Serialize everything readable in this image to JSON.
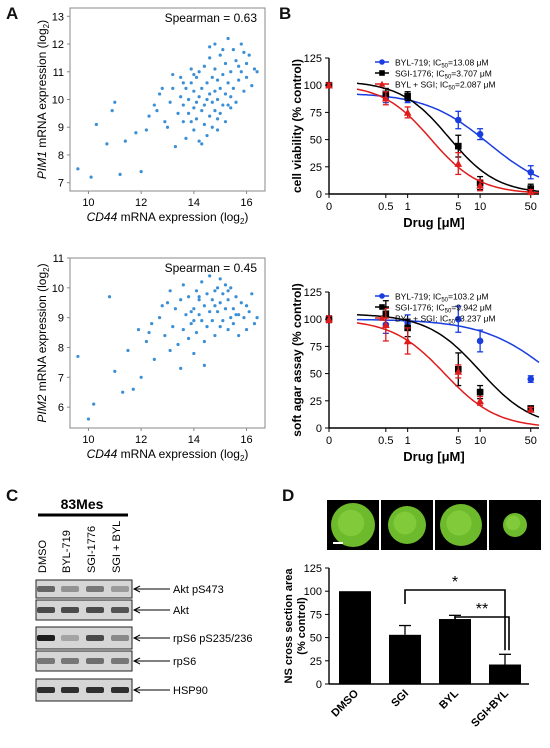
{
  "panels": {
    "A": {
      "label": "A",
      "top": {
        "stat": "Spearman = 0.63",
        "ylabel_gene": "PIM1",
        "ylabel_rest": " mRNA expression (log",
        "xlabel_gene": "CD44",
        "xlabel_rest": " mRNA expression (log",
        "sub": "2",
        "xticks": [
          10,
          12,
          14,
          16
        ],
        "yticks": [
          7,
          8,
          9,
          10,
          11,
          12,
          13
        ],
        "xlim": [
          9.3,
          16.7
        ],
        "ylim": [
          6.7,
          13.3
        ]
      },
      "bottom": {
        "stat": "Spearman = 0.45",
        "ylabel_gene": "PIM2",
        "ylabel_rest": " mRNA expression (log",
        "xlabel_gene": "CD44",
        "xlabel_rest": " mRNA expression (log",
        "sub": "2",
        "xticks": [
          10,
          12,
          14,
          16
        ],
        "yticks": [
          6,
          7,
          8,
          9,
          10,
          11
        ],
        "xlim": [
          9.3,
          16.7
        ],
        "ylim": [
          5.3,
          11.0
        ]
      }
    },
    "B": {
      "label": "B",
      "top": {
        "ylabel": "cell viability (% control)",
        "xlabel": "Drug [μM]",
        "yticks": [
          0,
          25,
          50,
          75,
          100,
          125
        ],
        "xticks": [
          "0",
          "0.5",
          "1",
          "5",
          "10",
          "50"
        ],
        "legend": [
          {
            "name": "BYL-719;",
            "ic": "IC",
            "sub": "50",
            "value": "=13.08 μM",
            "color": "#1a3de0",
            "marker": "circle"
          },
          {
            "name": "SGI-1776;",
            "ic": "IC",
            "sub": "50",
            "value": "=3.707 μM",
            "color": "#000000",
            "marker": "square"
          },
          {
            "name": "BYL + SGI;",
            "ic": "IC",
            "sub": "50",
            "value": "=2.087 μM",
            "color": "#e01b1b",
            "marker": "triangle"
          }
        ]
      },
      "bottom": {
        "ylabel": "soft agar assay (% control)",
        "xlabel": "Drug [μM]",
        "yticks": [
          0,
          25,
          50,
          75,
          100,
          125
        ],
        "xticks": [
          "0",
          "0.5",
          "1",
          "5",
          "10",
          "50"
        ],
        "legend": [
          {
            "name": "BYL-719;",
            "ic": "IC",
            "sub": "50",
            "value": "=103.2 μM",
            "color": "#1a3de0",
            "marker": "circle"
          },
          {
            "name": "SGI-1776;",
            "ic": "IC",
            "sub": "50",
            "value": "=9.942 μM",
            "color": "#000000",
            "marker": "square"
          },
          {
            "name": "BYL + SGI;",
            "ic": "IC",
            "sub": "50",
            "value": "=3.237 μM",
            "color": "#e01b1b",
            "marker": "triangle"
          }
        ]
      }
    },
    "C": {
      "label": "C",
      "cell_line": "83Mes",
      "lanes": [
        "DMSO",
        "BYL-719",
        "SGI-1776",
        "SGI + BYL"
      ],
      "bands": [
        "Akt pS473",
        "Akt",
        "rpS6 pS235/236",
        "rpS6",
        "HSP90"
      ]
    },
    "D": {
      "label": "D",
      "ylabel": "NS cross section area (% control)",
      "yticks": [
        0,
        25,
        50,
        75,
        100,
        125
      ],
      "sig1": "*",
      "sig2": "**"
    }
  },
  "chart_data": [
    {
      "type": "scatter",
      "panel": "A-top",
      "xlabel": "CD44 mRNA expression (log2)",
      "ylabel": "PIM1 mRNA expression (log2)",
      "xlim": [
        9.3,
        16.7
      ],
      "ylim": [
        6.7,
        13.3
      ],
      "color": "#3b8fd6",
      "points": [
        [
          9.6,
          7.5
        ],
        [
          10.1,
          7.2
        ],
        [
          10.3,
          9.1
        ],
        [
          10.7,
          8.4
        ],
        [
          10.9,
          9.6
        ],
        [
          11.0,
          9.9
        ],
        [
          11.2,
          7.3
        ],
        [
          11.4,
          8.5
        ],
        [
          11.8,
          8.8
        ],
        [
          12.0,
          7.4
        ],
        [
          12.2,
          8.9
        ],
        [
          12.3,
          9.4
        ],
        [
          12.5,
          9.8
        ],
        [
          12.6,
          9.6
        ],
        [
          12.8,
          10.4
        ],
        [
          13.0,
          9.0
        ],
        [
          13.1,
          9.9
        ],
        [
          13.2,
          10.4
        ],
        [
          13.3,
          8.3
        ],
        [
          13.4,
          9.5
        ],
        [
          13.5,
          10.1
        ],
        [
          13.5,
          10.8
        ],
        [
          13.6,
          9.2
        ],
        [
          13.6,
          9.8
        ],
        [
          13.7,
          8.6
        ],
        [
          13.7,
          10.4
        ],
        [
          13.8,
          9.5
        ],
        [
          13.8,
          10.0
        ],
        [
          13.9,
          9.2
        ],
        [
          13.9,
          10.6
        ],
        [
          14.0,
          8.9
        ],
        [
          14.0,
          9.7
        ],
        [
          14.0,
          10.3
        ],
        [
          14.1,
          9.3
        ],
        [
          14.1,
          9.9
        ],
        [
          14.2,
          8.5
        ],
        [
          14.2,
          10.1
        ],
        [
          14.2,
          11.0
        ],
        [
          14.3,
          9.6
        ],
        [
          14.3,
          10.4
        ],
        [
          14.4,
          9.1
        ],
        [
          14.4,
          9.8
        ],
        [
          14.4,
          11.2
        ],
        [
          14.5,
          8.7
        ],
        [
          14.5,
          10.0
        ],
        [
          14.5,
          10.6
        ],
        [
          14.6,
          9.4
        ],
        [
          14.6,
          10.2
        ],
        [
          14.6,
          11.5
        ],
        [
          14.7,
          9.0
        ],
        [
          14.7,
          9.9
        ],
        [
          14.7,
          10.8
        ],
        [
          14.8,
          9.6
        ],
        [
          14.8,
          10.3
        ],
        [
          14.8,
          11.1
        ],
        [
          14.9,
          8.9
        ],
        [
          14.9,
          10.0
        ],
        [
          14.9,
          10.7
        ],
        [
          15.0,
          9.5
        ],
        [
          15.0,
          10.4
        ],
        [
          15.0,
          11.6
        ],
        [
          15.1,
          9.8
        ],
        [
          15.1,
          10.9
        ],
        [
          15.2,
          9.2
        ],
        [
          15.2,
          10.2
        ],
        [
          15.2,
          11.3
        ],
        [
          15.3,
          10.6
        ],
        [
          15.3,
          12.2
        ],
        [
          15.4,
          9.7
        ],
        [
          15.4,
          11.0
        ],
        [
          15.5,
          10.4
        ],
        [
          15.5,
          11.8
        ],
        [
          15.6,
          9.9
        ],
        [
          15.6,
          11.4
        ],
        [
          15.7,
          10.7
        ],
        [
          15.8,
          11.0
        ],
        [
          15.8,
          12.0
        ],
        [
          15.9,
          10.3
        ],
        [
          16.0,
          11.3
        ],
        [
          16.0,
          10.8
        ],
        [
          16.1,
          11.6
        ],
        [
          16.2,
          10.5
        ],
        [
          16.3,
          11.1
        ],
        [
          16.4,
          11.0
        ],
        [
          13.2,
          10.9
        ],
        [
          14.1,
          10.8
        ],
        [
          14.6,
          11.9
        ],
        [
          15.1,
          11.8
        ],
        [
          12.9,
          9.2
        ],
        [
          13.9,
          11.1
        ],
        [
          14.3,
          8.4
        ],
        [
          15.4,
          10.1
        ],
        [
          15.7,
          11.2
        ],
        [
          14.8,
          12.0
        ],
        [
          13.6,
          10.6
        ],
        [
          12.7,
          10.2
        ],
        [
          15.9,
          11.7
        ],
        [
          14.0,
          10.9
        ],
        [
          14.9,
          9.3
        ],
        [
          15.3,
          9.8
        ]
      ]
    },
    {
      "type": "scatter",
      "panel": "A-bottom",
      "xlabel": "CD44 mRNA expression (log2)",
      "ylabel": "PIM2 mRNA expression (log2)",
      "xlim": [
        9.3,
        16.7
      ],
      "ylim": [
        5.3,
        11.0
      ],
      "color": "#3b8fd6",
      "points": [
        [
          9.6,
          7.7
        ],
        [
          10.0,
          5.6
        ],
        [
          10.2,
          6.1
        ],
        [
          10.8,
          9.7
        ],
        [
          11.0,
          7.2
        ],
        [
          11.3,
          6.5
        ],
        [
          11.5,
          7.9
        ],
        [
          11.7,
          6.6
        ],
        [
          11.9,
          8.6
        ],
        [
          12.0,
          7.0
        ],
        [
          12.2,
          8.2
        ],
        [
          12.4,
          8.8
        ],
        [
          12.5,
          7.6
        ],
        [
          12.7,
          9.0
        ],
        [
          12.9,
          8.4
        ],
        [
          13.0,
          9.5
        ],
        [
          13.1,
          7.9
        ],
        [
          13.2,
          8.7
        ],
        [
          13.3,
          9.3
        ],
        [
          13.4,
          8.1
        ],
        [
          13.5,
          9.6
        ],
        [
          13.6,
          8.6
        ],
        [
          13.6,
          10.1
        ],
        [
          13.7,
          9.1
        ],
        [
          13.8,
          8.3
        ],
        [
          13.8,
          9.7
        ],
        [
          13.9,
          8.8
        ],
        [
          14.0,
          9.3
        ],
        [
          14.0,
          7.8
        ],
        [
          14.1,
          9.9
        ],
        [
          14.1,
          8.5
        ],
        [
          14.2,
          9.1
        ],
        [
          14.2,
          9.6
        ],
        [
          14.3,
          8.9
        ],
        [
          14.3,
          10.2
        ],
        [
          14.4,
          8.2
        ],
        [
          14.4,
          9.4
        ],
        [
          14.5,
          9.8
        ],
        [
          14.5,
          8.7
        ],
        [
          14.6,
          9.2
        ],
        [
          14.6,
          10.4
        ],
        [
          14.7,
          8.9
        ],
        [
          14.7,
          9.6
        ],
        [
          14.8,
          8.4
        ],
        [
          14.8,
          9.9
        ],
        [
          14.9,
          9.2
        ],
        [
          14.9,
          10.0
        ],
        [
          15.0,
          8.7
        ],
        [
          15.0,
          9.5
        ],
        [
          15.1,
          9.8
        ],
        [
          15.1,
          8.9
        ],
        [
          15.2,
          9.3
        ],
        [
          15.2,
          10.1
        ],
        [
          15.3,
          8.6
        ],
        [
          15.3,
          9.6
        ],
        [
          15.4,
          9.0
        ],
        [
          15.4,
          10.0
        ],
        [
          15.5,
          9.3
        ],
        [
          15.5,
          8.8
        ],
        [
          15.6,
          9.7
        ],
        [
          15.7,
          9.1
        ],
        [
          15.7,
          8.4
        ],
        [
          15.8,
          9.5
        ],
        [
          15.9,
          9.0
        ],
        [
          16.0,
          9.4
        ],
        [
          16.0,
          8.6
        ],
        [
          16.1,
          9.2
        ],
        [
          16.2,
          9.8
        ],
        [
          16.3,
          8.8
        ],
        [
          16.4,
          9.0
        ],
        [
          13.1,
          9.9
        ],
        [
          14.0,
          8.9
        ],
        [
          14.4,
          7.4
        ],
        [
          15.0,
          10.3
        ],
        [
          13.5,
          7.3
        ],
        [
          12.8,
          9.4
        ],
        [
          15.6,
          9.1
        ],
        [
          14.2,
          9.7
        ],
        [
          14.8,
          9.4
        ],
        [
          13.9,
          9.2
        ],
        [
          15.3,
          9.9
        ],
        [
          12.3,
          8.5
        ]
      ]
    },
    {
      "type": "line",
      "panel": "B-top",
      "xlabel": "Drug [μM]",
      "ylabel": "cell viability (% control)",
      "x": [
        0,
        0.5,
        1,
        5,
        10,
        50
      ],
      "ylim": [
        0,
        125
      ],
      "series": [
        {
          "name": "BYL-719",
          "ic50": 13.08,
          "top": 93,
          "bottom": 0,
          "hill": 1.0,
          "values": [
            100,
            89,
            87,
            68,
            55,
            20
          ],
          "err": [
            2,
            5,
            3,
            8,
            5,
            6
          ],
          "color": "#1a3de0"
        },
        {
          "name": "SGI-1776",
          "ic50": 3.707,
          "top": 104,
          "bottom": 0,
          "hill": 1.3,
          "values": [
            100,
            92,
            90,
            44,
            10,
            5
          ],
          "err": [
            2,
            5,
            4,
            10,
            6,
            4
          ],
          "color": "#000000"
        },
        {
          "name": "BYL + SGI",
          "ic50": 2.087,
          "top": 101,
          "bottom": 0,
          "hill": 1.3,
          "values": [
            100,
            88,
            75,
            28,
            8,
            2
          ],
          "err": [
            2,
            6,
            5,
            10,
            5,
            2
          ],
          "color": "#e01b1b"
        }
      ]
    },
    {
      "type": "line",
      "panel": "B-bottom",
      "xlabel": "Drug [μM]",
      "ylabel": "soft agar assay (% control)",
      "x": [
        0,
        0.5,
        1,
        5,
        10,
        50
      ],
      "ylim": [
        0,
        125
      ],
      "series": [
        {
          "name": "BYL-719",
          "ic50": 103.2,
          "top": 100,
          "bottom": 0,
          "hill": 0.9,
          "values": [
            100,
            95,
            97,
            100,
            80,
            45
          ],
          "err": [
            3,
            8,
            7,
            12,
            10,
            3
          ],
          "color": "#1a3de0"
        },
        {
          "name": "SGI-1776",
          "ic50": 9.942,
          "top": 105,
          "bottom": 0,
          "hill": 1.2,
          "values": [
            100,
            105,
            92,
            54,
            33,
            18
          ],
          "err": [
            3,
            12,
            8,
            15,
            6,
            2
          ],
          "color": "#000000"
        },
        {
          "name": "BYL + SGI",
          "ic50": 3.237,
          "top": 100,
          "bottom": 0,
          "hill": 1.2,
          "values": [
            100,
            95,
            80,
            52,
            25,
            17
          ],
          "err": [
            3,
            15,
            12,
            6,
            4,
            2
          ],
          "color": "#e01b1b"
        }
      ]
    },
    {
      "type": "bar",
      "panel": "D",
      "categories": [
        "DMSO",
        "SGI",
        "BYL",
        "SGI+BYL"
      ],
      "values": [
        100,
        53,
        70,
        21
      ],
      "err": [
        0,
        10,
        4,
        11
      ],
      "ylabel": "NS cross section area (% control)",
      "ylim": [
        0,
        125
      ]
    }
  ]
}
